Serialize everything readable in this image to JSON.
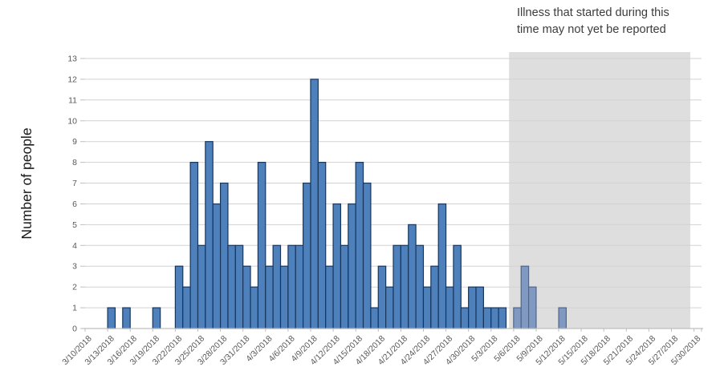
{
  "annotation": {
    "line1": "Illness that started during this",
    "line2": "time may not yet be reported"
  },
  "chart_data": {
    "type": "bar",
    "title": "",
    "xlabel": "",
    "ylabel": "Number of people",
    "ylim": [
      0,
      13
    ],
    "y_ticks": [
      0,
      1,
      2,
      3,
      4,
      5,
      6,
      7,
      8,
      9,
      10,
      11,
      12,
      13
    ],
    "grid": true,
    "x_tick_label_interval_days": 3,
    "categories": [
      "3/10/2018",
      "3/11/2018",
      "3/12/2018",
      "3/13/2018",
      "3/14/2018",
      "3/15/2018",
      "3/16/2018",
      "3/17/2018",
      "3/18/2018",
      "3/19/2018",
      "3/20/2018",
      "3/21/2018",
      "3/22/2018",
      "3/23/2018",
      "3/24/2018",
      "3/25/2018",
      "3/26/2018",
      "3/27/2018",
      "3/28/2018",
      "3/29/2018",
      "3/30/2018",
      "3/31/2018",
      "4/1/2018",
      "4/2/2018",
      "4/3/2018",
      "4/4/2018",
      "4/5/2018",
      "4/6/2018",
      "4/7/2018",
      "4/8/2018",
      "4/9/2018",
      "4/10/2018",
      "4/11/2018",
      "4/12/2018",
      "4/13/2018",
      "4/14/2018",
      "4/15/2018",
      "4/16/2018",
      "4/17/2018",
      "4/18/2018",
      "4/19/2018",
      "4/20/2018",
      "4/21/2018",
      "4/22/2018",
      "4/23/2018",
      "4/24/2018",
      "4/25/2018",
      "4/26/2018",
      "4/27/2018",
      "4/28/2018",
      "4/29/2018",
      "4/30/2018",
      "5/1/2018",
      "5/2/2018",
      "5/3/2018",
      "5/4/2018",
      "5/5/2018",
      "5/6/2018",
      "5/7/2018",
      "5/8/2018",
      "5/9/2018",
      "5/10/2018",
      "5/11/2018",
      "5/12/2018",
      "5/13/2018",
      "5/14/2018",
      "5/15/2018",
      "5/16/2018",
      "5/17/2018",
      "5/18/2018",
      "5/19/2018",
      "5/20/2018",
      "5/21/2018",
      "5/22/2018",
      "5/23/2018",
      "5/24/2018",
      "5/25/2018",
      "5/26/2018",
      "5/27/2018",
      "5/28/2018",
      "5/29/2018",
      "5/30/2018"
    ],
    "values": [
      0,
      0,
      0,
      1,
      0,
      1,
      0,
      0,
      0,
      1,
      0,
      0,
      3,
      2,
      8,
      4,
      9,
      6,
      7,
      4,
      4,
      3,
      2,
      8,
      3,
      4,
      3,
      4,
      4,
      7,
      12,
      8,
      3,
      6,
      4,
      6,
      8,
      7,
      1,
      3,
      2,
      4,
      4,
      5,
      4,
      2,
      3,
      6,
      2,
      4,
      1,
      2,
      2,
      1,
      1,
      1,
      0,
      1,
      3,
      2,
      0,
      0,
      0,
      1,
      0,
      0,
      0,
      0,
      0,
      0,
      0,
      0,
      0,
      0,
      0,
      0,
      0,
      0,
      0,
      0,
      0,
      0
    ],
    "unreported_region": {
      "start_category": "5/6/2018",
      "end_category": "5/30/2018"
    },
    "colors": {
      "bar_fill": "#4e80bc",
      "bar_stroke": "#17365d",
      "unreported_bar_fill": "#8099c1",
      "unreported_bar_stroke": "#52648a",
      "unreported_region_fill": "#dedede",
      "gridline": "#d2d2d2",
      "axis_line": "#bfbfbf",
      "tick_label": "#595959",
      "annotation_text": "#3c3c3c",
      "axis_title": "#1a1a1a"
    }
  }
}
